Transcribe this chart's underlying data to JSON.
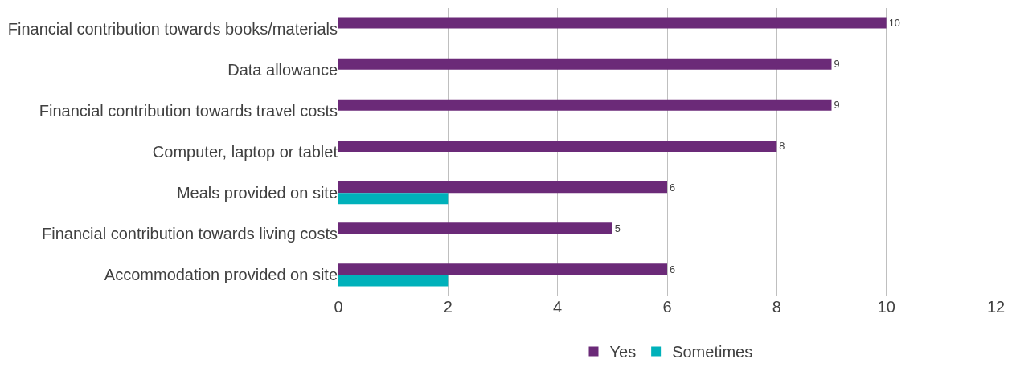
{
  "chart_data": {
    "type": "bar",
    "orientation": "horizontal",
    "categories": [
      "Financial contribution towards books/materials",
      "Data allowance",
      "Financial contribution towards travel costs",
      "Computer, laptop or tablet",
      "Meals provided on site",
      "Financial contribution towards living costs",
      "Accommodation provided on site"
    ],
    "series": [
      {
        "name": "Yes",
        "color": "#6b2a78",
        "values": [
          10,
          9,
          9,
          8,
          6,
          5,
          6
        ],
        "value_labels": [
          "10",
          "9",
          "9",
          "8",
          "6",
          "5",
          "6"
        ]
      },
      {
        "name": "Sometimes",
        "color": "#00b1ba",
        "values": [
          null,
          null,
          null,
          null,
          2,
          null,
          2
        ]
      }
    ],
    "xlim": [
      0,
      12
    ],
    "xticks": [
      0,
      2,
      4,
      6,
      8,
      10,
      12
    ],
    "grid": "x",
    "legend": "bottom"
  }
}
